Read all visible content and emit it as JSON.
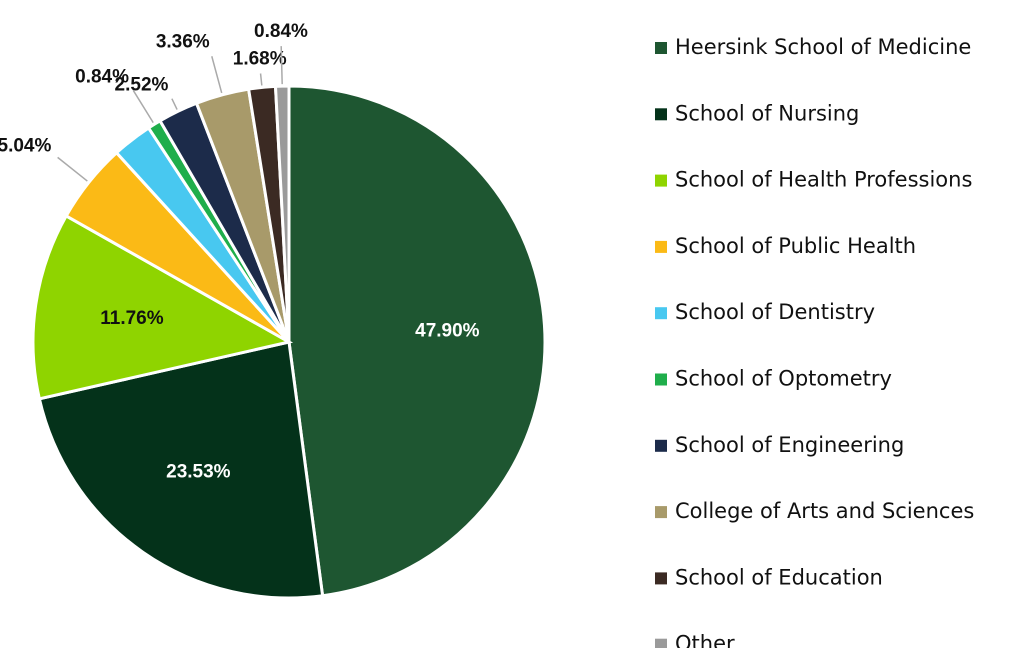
{
  "chart_data": {
    "type": "pie",
    "categories": [
      "Heersink School of Medicine",
      "School of Nursing",
      "School of Health Professions",
      "School of Public Health",
      "School of Dentistry",
      "School of Optometry",
      "School of Engineering",
      "College of Arts and Sciences",
      "School of Education",
      "Other"
    ],
    "values": [
      47.9,
      23.53,
      11.76,
      5.04,
      2.52,
      0.84,
      2.52,
      3.36,
      1.68,
      0.84
    ],
    "value_labels": [
      "47.90%",
      "23.53%",
      "11.76%",
      "5.04%",
      null,
      "0.84%",
      "2.52%",
      "3.36%",
      "1.68%",
      "0.84%"
    ],
    "colors": [
      "#1e5631",
      "#04321a",
      "#8fd400",
      "#fbba16",
      "#48c8f0",
      "#1fae4b",
      "#1c2b4a",
      "#a89a6a",
      "#3b2a23",
      "#9a9a9a"
    ],
    "legend": "right"
  }
}
